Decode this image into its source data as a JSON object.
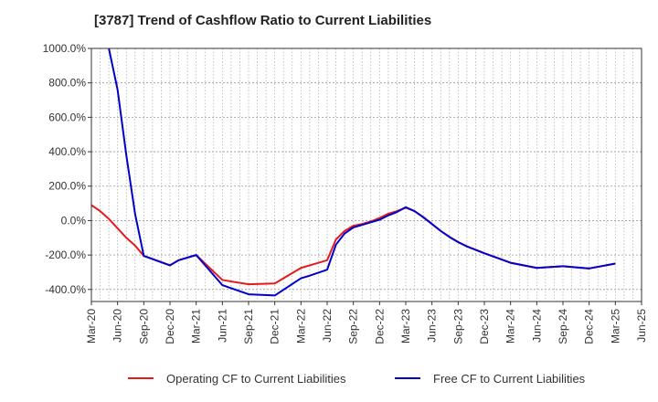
{
  "title": "[3787]  Trend of Cashflow Ratio to Current Liabilities",
  "chart_data": {
    "type": "line",
    "title": "[3787]  Trend of Cashflow Ratio to Current Liabilities",
    "xlabel": "",
    "ylabel": "",
    "ylim": [
      -470,
      1000
    ],
    "yticks": [
      1000,
      800,
      600,
      400,
      200,
      0,
      -200,
      -400
    ],
    "ytick_labels": [
      "1000.0%",
      "800.0%",
      "600.0%",
      "400.0%",
      "200.0%",
      "0.0%",
      "-200.0%",
      "-400.0%"
    ],
    "x_start": "Mar-20",
    "x_end": "Jun-25",
    "x_ticks": [
      "Mar-20",
      "Jun-20",
      "Sep-20",
      "Dec-20",
      "Mar-21",
      "Jun-21",
      "Sep-21",
      "Dec-21",
      "Mar-22",
      "Jun-22",
      "Sep-22",
      "Dec-22",
      "Mar-23",
      "Jun-23",
      "Sep-23",
      "Dec-23",
      "Mar-24",
      "Jun-24",
      "Sep-24",
      "Dec-24",
      "Mar-25",
      "Jun-25"
    ],
    "grid": true,
    "legend_position": "bottom",
    "series": [
      {
        "name": "Operating CF to Current Liabilities",
        "color": "#e41a1c",
        "points": [
          [
            "Mar-20",
            90
          ],
          [
            "Apr-20",
            55
          ],
          [
            "May-20",
            10
          ],
          [
            "Jun-20",
            -45
          ],
          [
            "Jul-20",
            -100
          ],
          [
            "Aug-20",
            -145
          ],
          [
            "Sep-20",
            -205
          ],
          [
            "Dec-20",
            -260
          ],
          [
            "Jan-21",
            -230
          ],
          [
            "Mar-21",
            -200
          ],
          [
            "Jun-21",
            -345
          ],
          [
            "Sep-21",
            -370
          ],
          [
            "Dec-21",
            -365
          ],
          [
            "Mar-22",
            -275
          ],
          [
            "Apr-22",
            -260
          ],
          [
            "Jun-22",
            -230
          ],
          [
            "Jul-22",
            -110
          ],
          [
            "Aug-22",
            -60
          ],
          [
            "Sep-22",
            -30
          ],
          [
            "Oct-22",
            -20
          ],
          [
            "Nov-22",
            -5
          ],
          [
            "Dec-22",
            15
          ],
          [
            "Jan-23",
            40
          ],
          [
            "Feb-23",
            55
          ],
          [
            "Mar-23",
            75
          ],
          [
            "Apr-23",
            55
          ],
          [
            "May-23",
            20
          ],
          [
            "Jun-23",
            -20
          ],
          [
            "Jul-23",
            -60
          ],
          [
            "Aug-23",
            -95
          ],
          [
            "Sep-23",
            -125
          ],
          [
            "Oct-23",
            -150
          ],
          [
            "Nov-23",
            -170
          ],
          [
            "Dec-23",
            -190
          ],
          [
            "Mar-24",
            -245
          ],
          [
            "Jun-24",
            -275
          ],
          [
            "Sep-24",
            -265
          ],
          [
            "Dec-24",
            -278
          ],
          [
            "Mar-25",
            -250
          ]
        ]
      },
      {
        "name": "Free CF to Current Liabilities",
        "color": "#0000cc",
        "points": [
          [
            "May-20",
            1000
          ],
          [
            "Jun-20",
            760
          ],
          [
            "Jul-20",
            380
          ],
          [
            "Aug-20",
            40
          ],
          [
            "Sep-20",
            -205
          ],
          [
            "Dec-20",
            -260
          ],
          [
            "Jan-21",
            -230
          ],
          [
            "Mar-21",
            -200
          ],
          [
            "Jun-21",
            -375
          ],
          [
            "Sep-21",
            -428
          ],
          [
            "Dec-21",
            -435
          ],
          [
            "Mar-22",
            -335
          ],
          [
            "Apr-22",
            -320
          ],
          [
            "Jun-22",
            -285
          ],
          [
            "Jul-22",
            -140
          ],
          [
            "Aug-22",
            -75
          ],
          [
            "Sep-22",
            -40
          ],
          [
            "Oct-22",
            -25
          ],
          [
            "Nov-22",
            -10
          ],
          [
            "Dec-22",
            5
          ],
          [
            "Jan-23",
            30
          ],
          [
            "Feb-23",
            50
          ],
          [
            "Mar-23",
            78
          ],
          [
            "Apr-23",
            55
          ],
          [
            "May-23",
            20
          ],
          [
            "Jun-23",
            -20
          ],
          [
            "Jul-23",
            -60
          ],
          [
            "Aug-23",
            -95
          ],
          [
            "Sep-23",
            -125
          ],
          [
            "Oct-23",
            -150
          ],
          [
            "Nov-23",
            -170
          ],
          [
            "Dec-23",
            -190
          ],
          [
            "Mar-24",
            -245
          ],
          [
            "Jun-24",
            -275
          ],
          [
            "Sep-24",
            -265
          ],
          [
            "Dec-24",
            -278
          ],
          [
            "Mar-25",
            -250
          ]
        ]
      }
    ]
  }
}
